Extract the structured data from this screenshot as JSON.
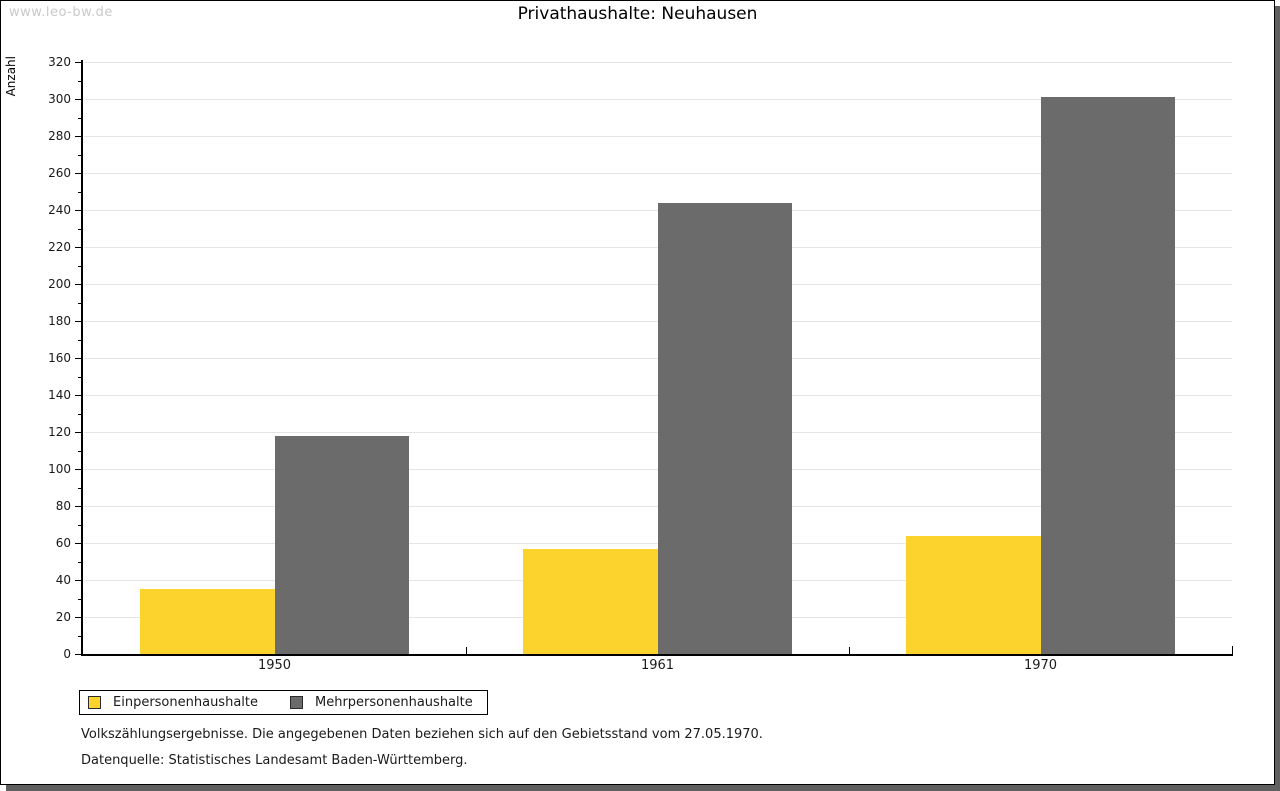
{
  "watermark": "www.leo-bw.de",
  "title": "Privathaushalte: Neuhausen",
  "chart_data": {
    "type": "bar",
    "title": "Privathaushalte: Neuhausen",
    "categories": [
      "1950",
      "1961",
      "1970"
    ],
    "series": [
      {
        "name": "Einpersonenhaushalte",
        "color": "#FBD32C",
        "values": [
          35,
          57,
          64
        ]
      },
      {
        "name": "Mehrpersonenhaushalte",
        "color": "#6B6B6B",
        "values": [
          118,
          244,
          301
        ]
      }
    ],
    "xlabel": "",
    "ylabel": "Anzahl",
    "ylim": [
      0,
      320
    ],
    "ytick_step": 20,
    "minor_tick_step": 10,
    "grid": true,
    "gridline_color": "#e5e5e5",
    "legend_position": "bottom-left"
  },
  "footer": {
    "line1": "Volkszählungsergebnisse. Die angegebenen Daten beziehen sich auf den Gebietsstand vom 27.05.1970.",
    "line2": "Datenquelle: Statistisches Landesamt Baden-Württemberg."
  }
}
